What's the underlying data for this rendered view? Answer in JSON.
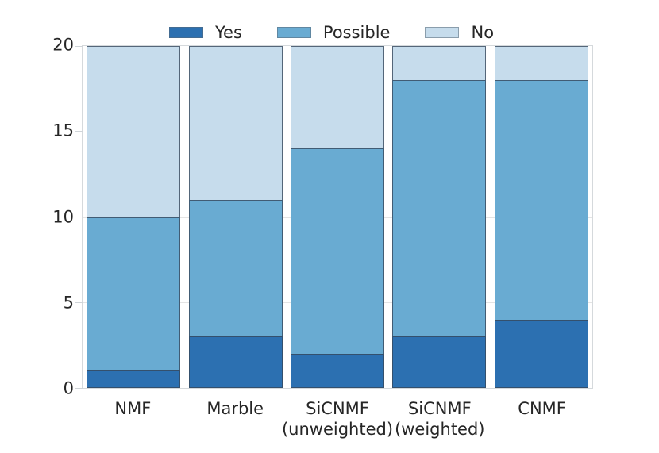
{
  "chart_data": {
    "type": "bar",
    "stacked": true,
    "title": "",
    "xlabel": "",
    "ylabel": "",
    "categories": [
      "NMF",
      "Marble",
      "SiCNMF\n(unweighted)",
      "SiCNMF\n(weighted)",
      "CNMF"
    ],
    "series": [
      {
        "name": "Yes",
        "color": "#2c70b1",
        "values": [
          1,
          3,
          2,
          3,
          4
        ]
      },
      {
        "name": "Possible",
        "color": "#69abd2",
        "values": [
          9,
          8,
          12,
          15,
          14
        ]
      },
      {
        "name": "No",
        "color": "#c6dcec",
        "values": [
          10,
          9,
          6,
          2,
          2
        ]
      }
    ],
    "ylim": [
      0,
      20
    ],
    "yticks": [
      0,
      5,
      10,
      15,
      20
    ],
    "grid": true,
    "legend_position": "top-center",
    "colors": {
      "bar_edge": "#37485c",
      "grid": "#e4e4e4",
      "spine": "#d5d9dc",
      "tick_label": "#262626"
    }
  }
}
